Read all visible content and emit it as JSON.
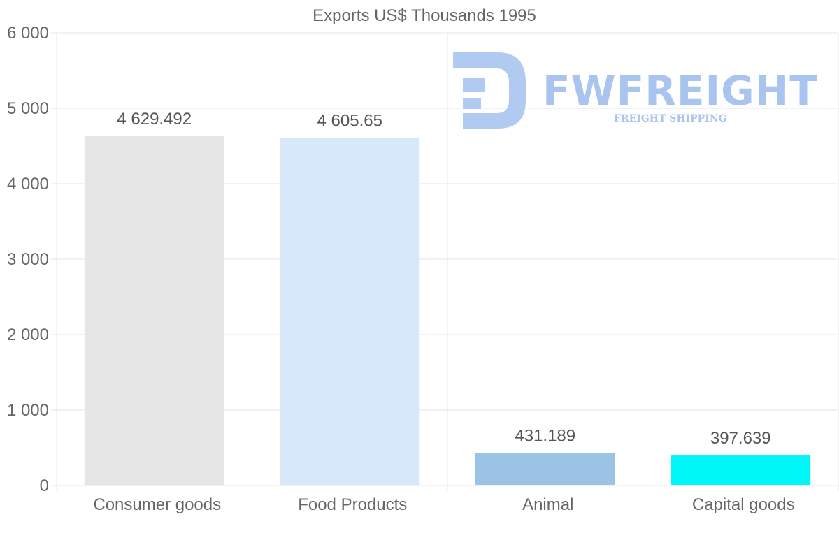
{
  "chart_data": {
    "type": "bar",
    "title": "Exports US$ Thousands 1995",
    "categories": [
      "Consumer goods",
      "Food Products",
      "Animal",
      "Capital goods"
    ],
    "values": [
      4629.492,
      4605.65,
      431.189,
      397.639
    ],
    "data_labels": [
      "4 629.492",
      "4 605.65",
      "431.189",
      "397.639"
    ],
    "colors": [
      "#e6e6e6",
      "#d6e8fa",
      "#9bc3e6",
      "#00f7f7"
    ],
    "ylim": [
      0,
      6000
    ],
    "yticks": [
      0,
      1000,
      2000,
      3000,
      4000,
      5000,
      6000
    ],
    "ytick_labels": [
      "0",
      "1 000",
      "2 000",
      "3 000",
      "4 000",
      "5 000",
      "6 000"
    ],
    "xlabel": "",
    "ylabel": "",
    "grid": true,
    "legend": "none"
  },
  "watermark": {
    "brand": "FWFREIGHT",
    "tagline": "FREIGHT SHIPPING",
    "color": "#a9c4ef"
  }
}
